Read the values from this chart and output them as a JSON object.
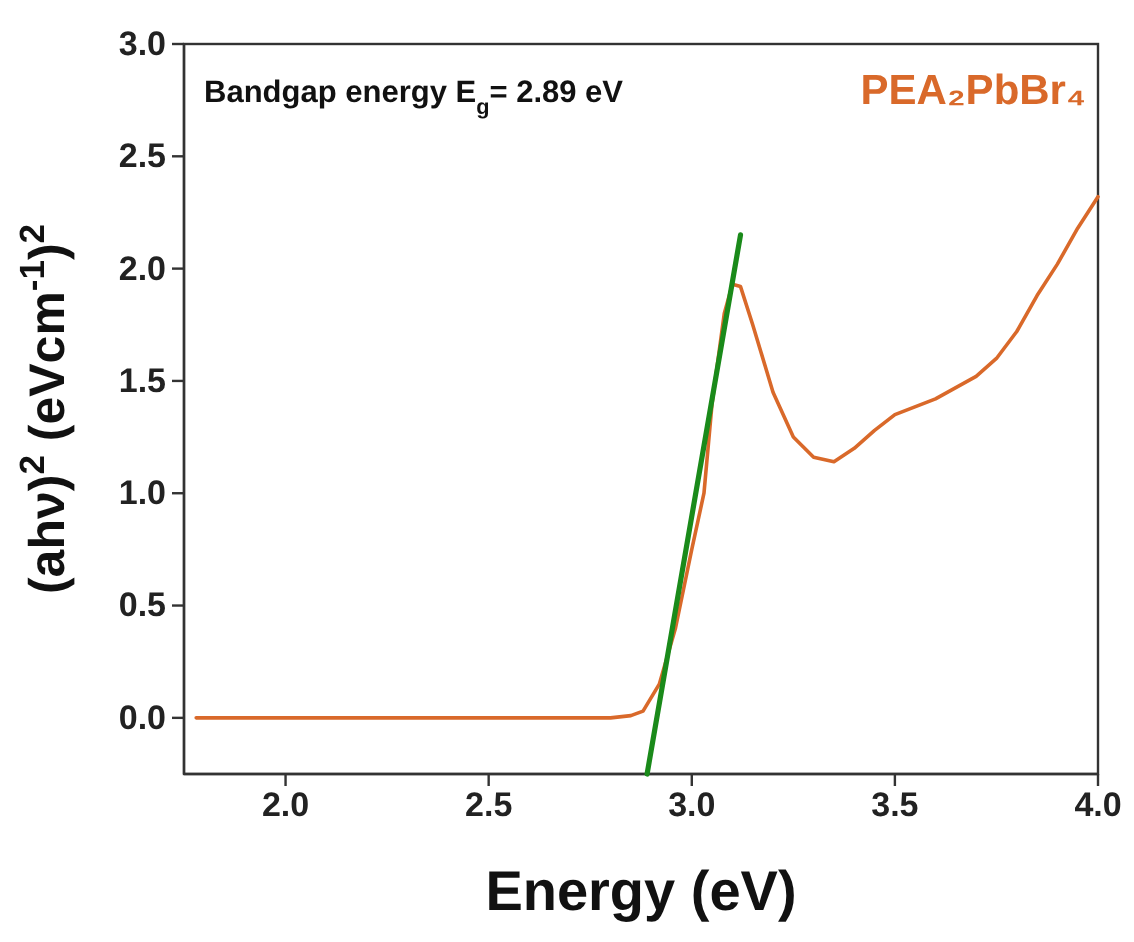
{
  "chart_data": {
    "type": "line",
    "xlabel": "Energy (eV)",
    "ylabel": "(ahν)$^{2}$ (eVcm$^{-1}$)$^{2}$",
    "annotations": [
      "Bandgap energy E$_{g}$= 2.89 eV"
    ],
    "xlim": [
      1.75,
      4.0
    ],
    "xticks": [
      {
        "value": 2.0,
        "label": "2.0"
      },
      {
        "value": 2.5,
        "label": "2.5"
      },
      {
        "value": 3.0,
        "label": "3.0"
      },
      {
        "value": 3.5,
        "label": "3.5"
      },
      {
        "value": 4.0,
        "label": "4.0"
      }
    ],
    "ylim": [
      -0.25,
      3.0
    ],
    "yticks": [
      {
        "value": 0,
        "label": "0.0"
      },
      {
        "value": 0.5,
        "label": "0.5"
      },
      {
        "value": 1.0,
        "label": "1.0"
      },
      {
        "value": 1.5,
        "label": "1.5"
      },
      {
        "value": 2.0,
        "label": "2.0"
      },
      {
        "value": 2.5,
        "label": "2.5"
      },
      {
        "value": 3.0,
        "label": "3.0"
      }
    ],
    "legend": "top right",
    "grid": false,
    "series": [
      {
        "name": "PEA₂PbBr₄",
        "color": "#d9692a",
        "x": [
          1.78,
          2.2,
          2.6,
          2.8,
          2.85,
          2.88,
          2.92,
          2.96,
          3.0,
          3.03,
          3.05,
          3.08,
          3.1,
          3.12,
          3.15,
          3.2,
          3.25,
          3.3,
          3.35,
          3.4,
          3.45,
          3.5,
          3.6,
          3.7,
          3.75,
          3.8,
          3.85,
          3.9,
          3.95,
          4.0
        ],
        "values": [
          0,
          0,
          0,
          0,
          0.01,
          0.03,
          0.15,
          0.4,
          0.75,
          1.0,
          1.4,
          1.8,
          1.93,
          1.92,
          1.75,
          1.45,
          1.25,
          1.16,
          1.14,
          1.2,
          1.28,
          1.35,
          1.42,
          1.52,
          1.6,
          1.72,
          1.88,
          2.02,
          2.18,
          2.32
        ]
      },
      {
        "type": "line",
        "color": "#1a8a1a",
        "x": [
          2.89,
          3.12
        ],
        "values": [
          -0.25,
          2.15
        ]
      }
    ]
  }
}
